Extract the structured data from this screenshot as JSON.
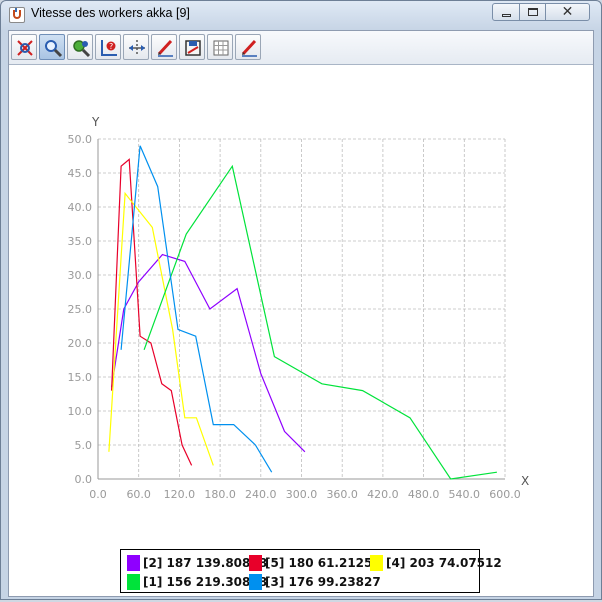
{
  "window": {
    "title": "Vitesse des workers akka [9]",
    "app_icon": "java-cup-icon",
    "controls": {
      "minimize_icon": "minimize-icon",
      "maximize_icon": "maximize-icon",
      "close_icon": "close-icon",
      "close_glyph": "✕"
    }
  },
  "toolbar": {
    "buttons": [
      {
        "icon": "zoom-reset-icon",
        "active": false
      },
      {
        "icon": "zoom-magnifier-icon",
        "active": true
      },
      {
        "icon": "zoom-area-icon",
        "active": false
      },
      {
        "icon": "axis-settings-icon",
        "active": false
      },
      {
        "icon": "move-icon",
        "active": false
      },
      {
        "icon": "edit-pencil-icon",
        "active": false
      },
      {
        "icon": "save-image-icon",
        "active": false
      },
      {
        "icon": "grid-toggle-icon",
        "active": false
      },
      {
        "icon": "edit-pencil-icon",
        "active": false
      }
    ]
  },
  "chart_data": {
    "type": "line",
    "title": "",
    "xlabel": "X",
    "ylabel": "Y",
    "xlim": [
      0,
      600
    ],
    "ylim": [
      0,
      50
    ],
    "x_ticks": [
      "0.0",
      "60.0",
      "120.0",
      "180.0",
      "240.0",
      "300.0",
      "360.0",
      "420.0",
      "480.0",
      "540.0",
      "600.0"
    ],
    "y_ticks": [
      "0.0",
      "5.0",
      "10.0",
      "15.0",
      "20.0",
      "25.0",
      "30.0",
      "35.0",
      "40.0",
      "45.0",
      "50.0"
    ],
    "grid": true,
    "legend_position": "bottom-center",
    "series": [
      {
        "name": "[2] 187 139.80878",
        "color": "#8f00ff",
        "points": [
          [
            20,
            13.5
          ],
          [
            38,
            25
          ],
          [
            60,
            29
          ],
          [
            95,
            33
          ],
          [
            128,
            32
          ],
          [
            165,
            25
          ],
          [
            205,
            28
          ],
          [
            240,
            15.5
          ],
          [
            275,
            7
          ],
          [
            305,
            4
          ]
        ]
      },
      {
        "name": "[5] 180 61.21258",
        "color": "#e8002a",
        "points": [
          [
            20,
            13
          ],
          [
            34,
            46
          ],
          [
            46,
            47
          ],
          [
            62,
            21
          ],
          [
            78,
            20
          ],
          [
            94,
            14
          ],
          [
            108,
            13
          ],
          [
            124,
            5
          ],
          [
            138,
            2
          ]
        ]
      },
      {
        "name": "[4] 203 74.07512",
        "color": "#ffff00",
        "points": [
          [
            16,
            4
          ],
          [
            40,
            42
          ],
          [
            60,
            39.5
          ],
          [
            80,
            37
          ],
          [
            110,
            22
          ],
          [
            128,
            9
          ],
          [
            145,
            9
          ],
          [
            170,
            2
          ]
        ]
      },
      {
        "name": "[1] 156 219.30888",
        "color": "#00e33a",
        "points": [
          [
            68,
            19
          ],
          [
            130,
            36
          ],
          [
            198,
            46
          ],
          [
            260,
            18
          ],
          [
            330,
            14
          ],
          [
            390,
            13
          ],
          [
            460,
            9
          ],
          [
            520,
            0
          ],
          [
            588,
            1
          ]
        ]
      },
      {
        "name": "[3] 176 99.23827",
        "color": "#0090ef",
        "points": [
          [
            34,
            19
          ],
          [
            62,
            49
          ],
          [
            88,
            43
          ],
          [
            118,
            22
          ],
          [
            144,
            21
          ],
          [
            170,
            8
          ],
          [
            200,
            8
          ],
          [
            232,
            5
          ],
          [
            256,
            1
          ]
        ]
      }
    ]
  }
}
